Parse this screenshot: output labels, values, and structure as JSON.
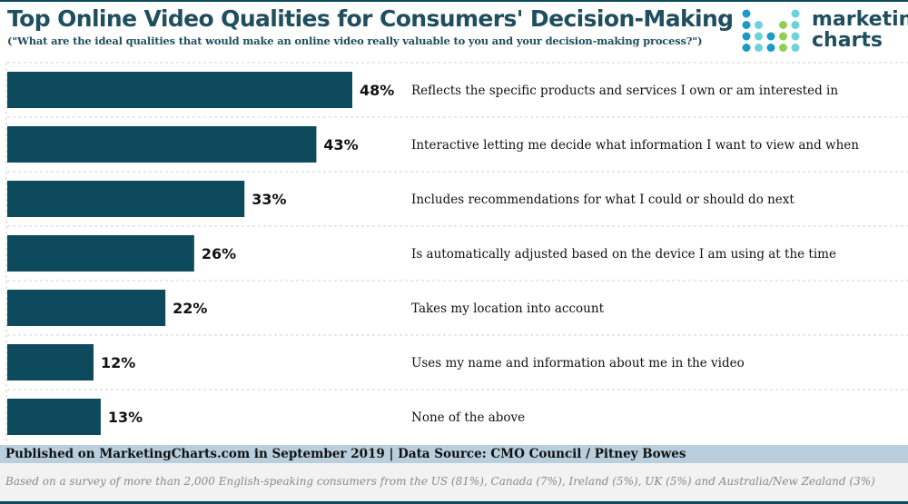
{
  "title": "Top Online Video Qualities for Consumers' Decision-Making",
  "subtitle": "(\"What are the ideal qualities that would make an online video really valuable to you and your decision-making process?\")",
  "logo": {
    "line1": "marketing",
    "line2": "charts"
  },
  "footer": {
    "published": "Published on MarketingCharts.com in September 2019 | Data Source: CMO Council / Pitney Bowes",
    "note": "Based on a survey of more than 2,000 English-speaking consumers from the US (81%), Canada (7%), Ireland (5%), UK (5%) and Australia/New Zealand (3%)"
  },
  "colors": {
    "bar": "#0d4a5e",
    "title": "#1f4e5f"
  },
  "chart_data": {
    "type": "bar",
    "orientation": "horizontal",
    "title": "Top Online Video Qualities for Consumers' Decision-Making",
    "categories": [
      "Reflects the specific products and services I own or am interested in",
      "Interactive letting me decide what information I want to view and when",
      "Includes recommendations for what I could or should do next",
      "Is automatically adjusted based on the device I am using at the time",
      "Takes my location into account",
      "Uses my name and information about me in the video",
      "None of the above"
    ],
    "values": [
      48,
      43,
      33,
      26,
      22,
      12,
      13
    ],
    "labels": [
      "48%",
      "43%",
      "33%",
      "26%",
      "22%",
      "12%",
      "13%"
    ],
    "unit": "%",
    "xlim": [
      0,
      48
    ],
    "grid": true
  }
}
